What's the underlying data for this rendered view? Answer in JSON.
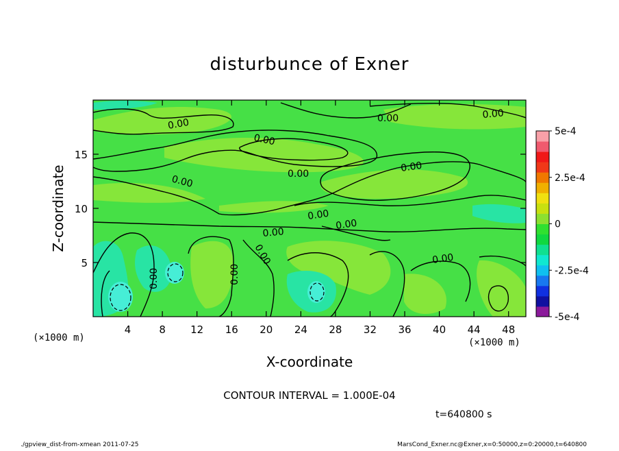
{
  "chart_data": {
    "type": "heatmap",
    "title": "disturbunce of Exner",
    "xlabel": "X-coordinate",
    "ylabel": "Z-coordinate",
    "x_unit": "(×1000 m)",
    "y_unit": "(×1000 m)",
    "xlim": [
      0,
      50
    ],
    "ylim": [
      0,
      20
    ],
    "x_ticks": [
      4,
      8,
      12,
      16,
      20,
      24,
      28,
      32,
      36,
      40,
      44,
      48
    ],
    "y_ticks": [
      5,
      10,
      15
    ],
    "colorbar": {
      "min": -0.0005,
      "max": 0.0005,
      "tick_labels": [
        "5e-4",
        "2.5e-4",
        "0",
        "-2.5e-4",
        "-5e-4"
      ],
      "tick_values": [
        0.0005,
        0.00025,
        0,
        -0.00025,
        -0.0005
      ],
      "colors": [
        "#8B1A9B",
        "#1010A0",
        "#1030E0",
        "#1878F0",
        "#10C0F0",
        "#10E8D0",
        "#10E090",
        "#10D840",
        "#30E030",
        "#8CE030",
        "#C8E010",
        "#F0E010",
        "#F0B000",
        "#F07800",
        "#F03818",
        "#F01818",
        "#F05A6E",
        "#F8A0A8"
      ]
    },
    "contour_label": "0.00",
    "contour_interval_text": "CONTOUR INTERVAL = 1.000E-04",
    "time_text": "t=640800 s"
  },
  "footer": {
    "left": "./gpview_dist-from-xmean  2011-07-25",
    "right": "MarsCond_Exner.nc@Exner,x=0:50000,z=0:20000,t=640800"
  },
  "colors": {
    "field_base": "#46E046",
    "light_green": "#8CE83C",
    "cyan_green": "#28E8A0",
    "cyan": "#28E8D8",
    "contour": "#000000"
  }
}
